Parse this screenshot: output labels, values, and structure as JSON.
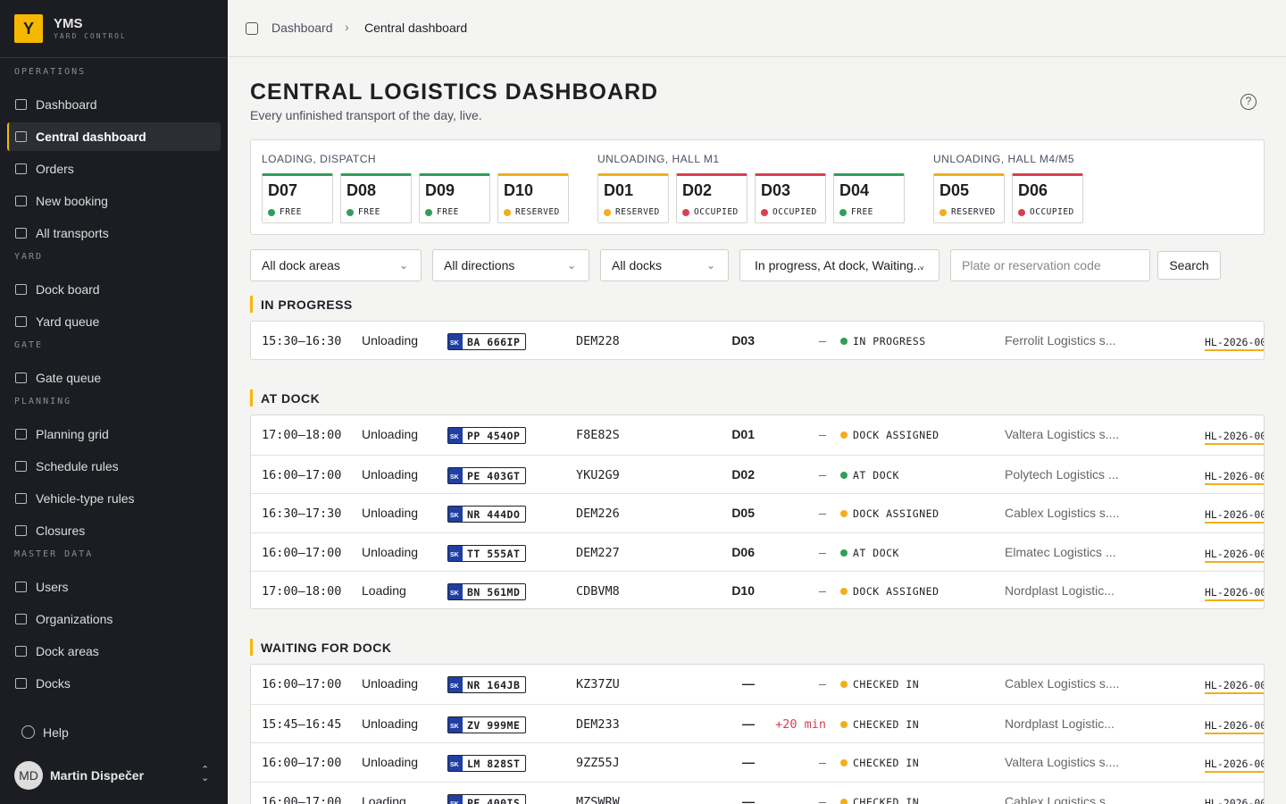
{
  "sidebar": {
    "logo": "Y",
    "brand": "YMS",
    "tagline": "YARD CONTROL",
    "sections": [
      {
        "title": "OPERATIONS",
        "items": [
          {
            "label": "Dashboard"
          },
          {
            "label": "Central dashboard",
            "active": true
          },
          {
            "label": "Orders"
          },
          {
            "label": "New booking"
          },
          {
            "label": "All transports"
          }
        ]
      },
      {
        "title": "YARD",
        "items": [
          {
            "label": "Dock board"
          },
          {
            "label": "Yard queue"
          }
        ]
      },
      {
        "title": "GATE",
        "items": [
          {
            "label": "Gate queue"
          }
        ]
      },
      {
        "title": "PLANNING",
        "items": [
          {
            "label": "Planning grid"
          },
          {
            "label": "Schedule rules"
          },
          {
            "label": "Vehicle-type rules"
          },
          {
            "label": "Closures"
          }
        ]
      },
      {
        "title": "MASTER DATA",
        "items": [
          {
            "label": "Users"
          },
          {
            "label": "Organizations"
          },
          {
            "label": "Dock areas"
          },
          {
            "label": "Docks"
          }
        ]
      }
    ],
    "help": "Help",
    "user": {
      "initials": "MD",
      "name": "Martin Dispečer"
    }
  },
  "breadcrumb": [
    "Dashboard",
    "Central dashboard"
  ],
  "page": {
    "title": "CENTRAL LOGISTICS DASHBOARD",
    "subtitle": "Every unfinished transport of the day, live."
  },
  "dock_groups": [
    {
      "title": "LOADING, DISPATCH",
      "docks": [
        {
          "name": "D07",
          "status": "FREE",
          "color": "#2f9e5a"
        },
        {
          "name": "D08",
          "status": "FREE",
          "color": "#2f9e5a"
        },
        {
          "name": "D09",
          "status": "FREE",
          "color": "#2f9e5a"
        },
        {
          "name": "D10",
          "status": "RESERVED",
          "color": "#f2ae1c"
        }
      ]
    },
    {
      "title": "UNLOADING, HALL M1",
      "docks": [
        {
          "name": "D01",
          "status": "RESERVED",
          "color": "#f2ae1c"
        },
        {
          "name": "D02",
          "status": "OCCUPIED",
          "color": "#d8404f"
        },
        {
          "name": "D03",
          "status": "OCCUPIED",
          "color": "#d8404f"
        },
        {
          "name": "D04",
          "status": "FREE",
          "color": "#2f9e5a"
        }
      ]
    },
    {
      "title": "UNLOADING, HALL M4/M5",
      "docks": [
        {
          "name": "D05",
          "status": "RESERVED",
          "color": "#f2ae1c"
        },
        {
          "name": "D06",
          "status": "OCCUPIED",
          "color": "#d8404f"
        }
      ]
    }
  ],
  "filters": {
    "dock_area": "All dock areas",
    "direction": "All directions",
    "docks": "All docks",
    "status": "In progress, At dock, Waiting...",
    "search_placeholder": "Plate or reservation code",
    "search_button": "Search"
  },
  "sections": [
    {
      "title": "IN PROGRESS",
      "rows": [
        {
          "time": "15:30–16:30",
          "direction": "Unloading",
          "country": "SK",
          "plate": "BA 666IP",
          "code": "DEM228",
          "dock": "D03",
          "delay": "—",
          "status": "IN PROGRESS",
          "dot": "#2f9e5a",
          "carrier": "Ferrolit Logistics s...",
          "reference": "HL-2026-00"
        }
      ]
    },
    {
      "title": "AT DOCK",
      "rows": [
        {
          "time": "17:00–18:00",
          "direction": "Unloading",
          "country": "SK",
          "plate": "PP 454OP",
          "code": "F8E82S",
          "dock": "D01",
          "delay": "—",
          "status": "DOCK ASSIGNED",
          "dot": "#f2ae1c",
          "carrier": "Valtera Logistics s....",
          "reference": "HL-2026-00"
        },
        {
          "time": "16:00–17:00",
          "direction": "Unloading",
          "country": "SK",
          "plate": "PE 403GT",
          "code": "YKU2G9",
          "dock": "D02",
          "delay": "—",
          "status": "AT DOCK",
          "dot": "#2f9e5a",
          "carrier": "Polytech Logistics ...",
          "reference": "HL-2026-00"
        },
        {
          "time": "16:30–17:30",
          "direction": "Unloading",
          "country": "SK",
          "plate": "NR 444DO",
          "code": "DEM226",
          "dock": "D05",
          "delay": "—",
          "status": "DOCK ASSIGNED",
          "dot": "#f2ae1c",
          "carrier": "Cablex Logistics s....",
          "reference": "HL-2026-00"
        },
        {
          "time": "16:00–17:00",
          "direction": "Unloading",
          "country": "SK",
          "plate": "TT 555AT",
          "code": "DEM227",
          "dock": "D06",
          "delay": "—",
          "status": "AT DOCK",
          "dot": "#2f9e5a",
          "carrier": "Elmatec Logistics ...",
          "reference": "HL-2026-00"
        },
        {
          "time": "17:00–18:00",
          "direction": "Loading",
          "country": "SK",
          "plate": "BN 561MD",
          "code": "CDBVM8",
          "dock": "D10",
          "delay": "—",
          "status": "DOCK ASSIGNED",
          "dot": "#f2ae1c",
          "carrier": "Nordplast Logistic...",
          "reference": "HL-2026-00"
        }
      ]
    },
    {
      "title": "WAITING FOR DOCK",
      "rows": [
        {
          "time": "16:00–17:00",
          "direction": "Unloading",
          "country": "SK",
          "plate": "NR 164JB",
          "code": "KZ37ZU",
          "dock": "—",
          "delay": "—",
          "status": "CHECKED IN",
          "dot": "#f2ae1c",
          "carrier": "Cablex Logistics s....",
          "reference": "HL-2026-00"
        },
        {
          "time": "15:45–16:45",
          "direction": "Unloading",
          "country": "SK",
          "plate": "ZV 999ME",
          "code": "DEM233",
          "dock": "—",
          "delay": "+20 min",
          "late": true,
          "status": "CHECKED IN",
          "dot": "#f2ae1c",
          "carrier": "Nordplast Logistic...",
          "reference": "HL-2026-00"
        },
        {
          "time": "16:00–17:00",
          "direction": "Unloading",
          "country": "SK",
          "plate": "LM 828ST",
          "code": "9ZZ55J",
          "dock": "—",
          "delay": "—",
          "status": "CHECKED IN",
          "dot": "#f2ae1c",
          "carrier": "Valtera Logistics s....",
          "reference": "HL-2026-00"
        },
        {
          "time": "16:00–17:00",
          "direction": "Loading",
          "country": "SK",
          "plate": "PE 400IS",
          "code": "MZSWRW",
          "dock": "—",
          "delay": "—",
          "status": "CHECKED IN",
          "dot": "#f2ae1c",
          "carrier": "Cablex Logistics s....",
          "reference": "HL-2026-00"
        }
      ]
    }
  ]
}
